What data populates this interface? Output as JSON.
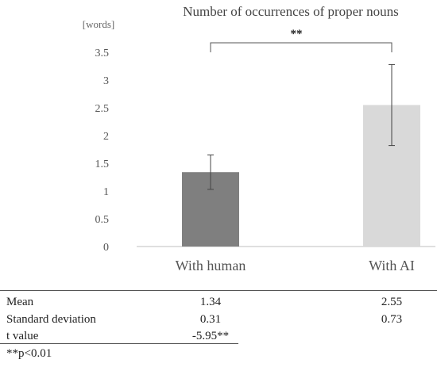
{
  "chart_data": {
    "type": "bar",
    "title": "Number of occurrences of proper nouns",
    "ylabel": "[words]",
    "categories": [
      "With human",
      "With AI"
    ],
    "values": [
      1.34,
      2.55
    ],
    "error_bars": [
      0.31,
      0.73
    ],
    "ylim": [
      0,
      3.5
    ],
    "yticks": [
      "0",
      "0.5",
      "1",
      "1.5",
      "2",
      "2.5",
      "3",
      "3.5"
    ],
    "grid": false,
    "bar_colors": [
      "#7f7f7f",
      "#d9d9d9"
    ],
    "significance": "**"
  },
  "table": {
    "rows": [
      {
        "label": "Mean",
        "values": [
          "1.34",
          "2.55"
        ]
      },
      {
        "label": "Standard deviation",
        "values": [
          "0.31",
          "0.73"
        ]
      },
      {
        "label": "t value",
        "values": [
          "-5.95**",
          ""
        ]
      }
    ]
  },
  "footnote": "**p<0.01"
}
